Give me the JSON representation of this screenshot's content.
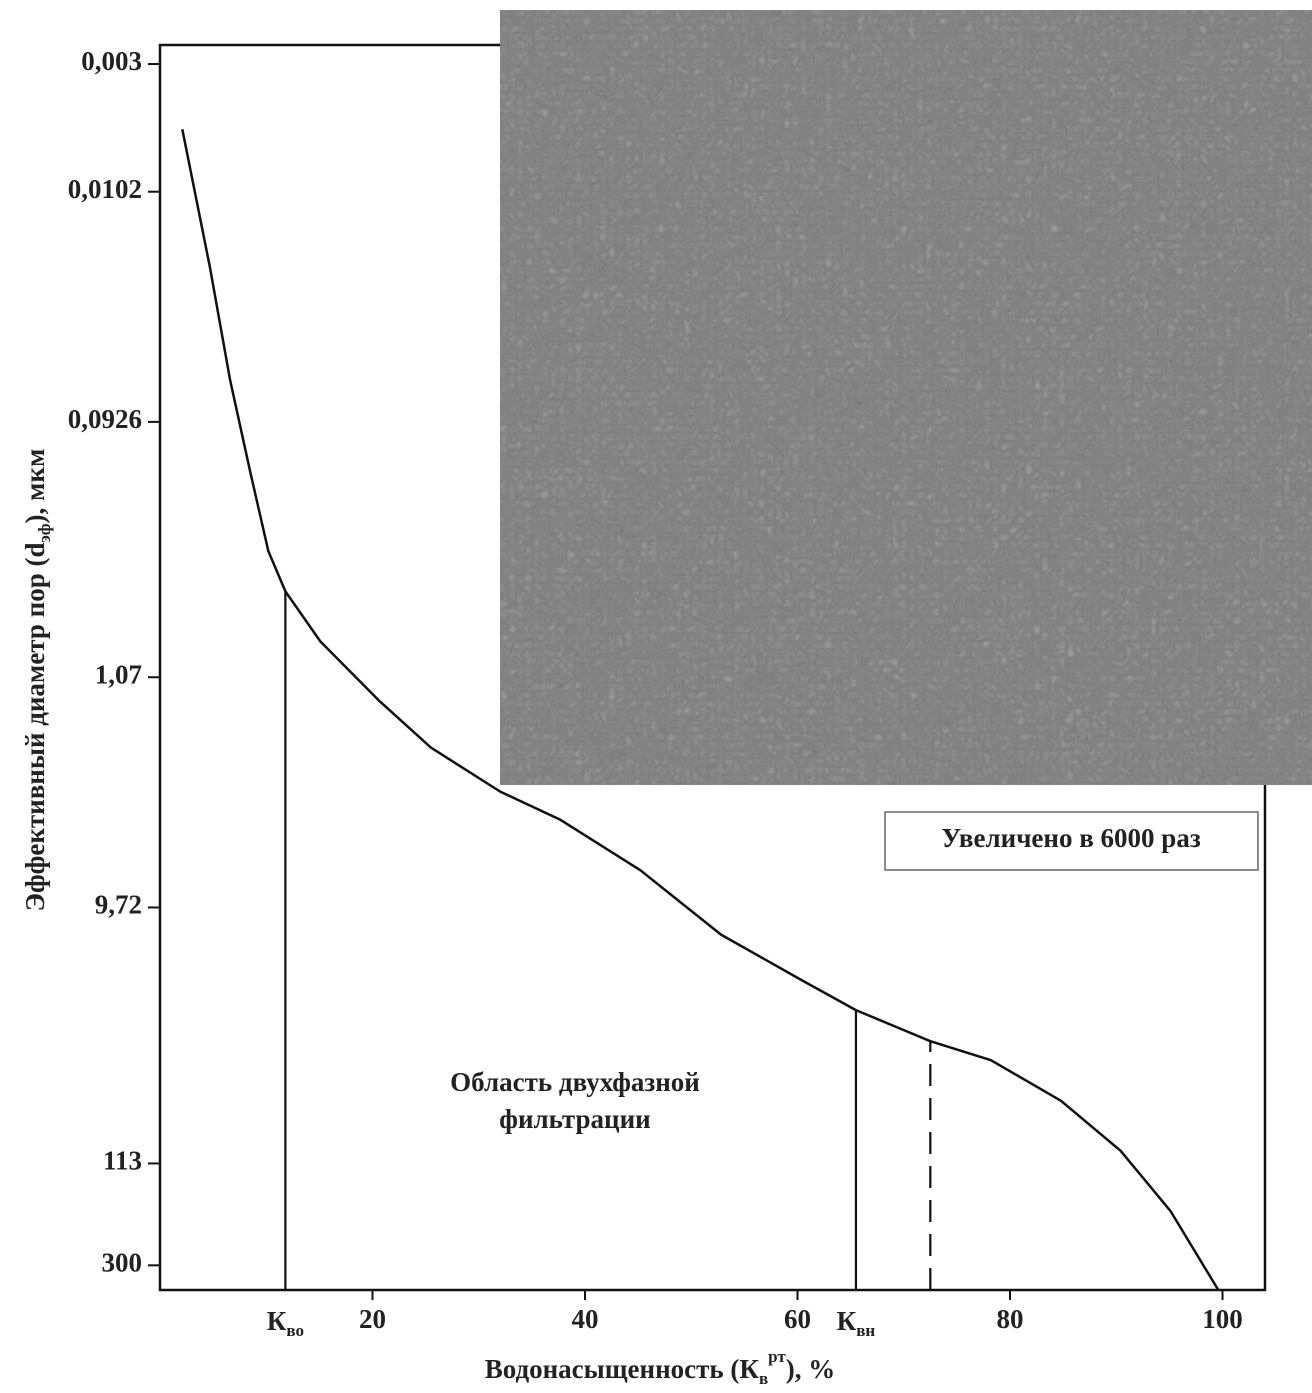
{
  "chart_data": {
    "type": "line",
    "xlabel": {
      "text": "Водонасыщенность (К",
      "sub": "в",
      "sup": "рт",
      "tail": "), %"
    },
    "ylabel": {
      "text": "Эффективный диаметр пор (d",
      "sub": "эф",
      "tail": "), мкм"
    },
    "x": [
      2.1,
      4.7,
      6.6,
      8.5,
      10.2,
      11.8,
      15.1,
      20.7,
      25.5,
      32,
      37.7,
      45.2,
      52.8,
      60.3,
      65.5,
      72.5,
      78.2,
      84.8,
      90.4,
      95.1,
      99.6
    ],
    "values": [
      0.0056,
      0.021,
      0.062,
      0.15,
      0.32,
      0.47,
      0.76,
      1.35,
      2.1,
      3.2,
      4.2,
      6.8,
      12.6,
      19.4,
      26,
      35,
      42,
      62,
      100,
      178,
      380
    ],
    "color": "#111111",
    "xlim": [
      0,
      104
    ],
    "xticks": [
      20,
      40,
      60,
      80,
      100
    ],
    "ylim": [
      0.0025,
      380
    ],
    "yscale": "log",
    "yinverted": true,
    "yticks": [
      {
        "value": 0.003,
        "label": "0,003"
      },
      {
        "value": 0.0102,
        "label": "0,0102"
      },
      {
        "value": 0.0926,
        "label": "0,0926"
      },
      {
        "value": 1.07,
        "label": "1,07"
      },
      {
        "value": 9.72,
        "label": "9,72"
      },
      113,
      300
    ],
    "vlines": [
      {
        "x": 11.8,
        "y": 0.47,
        "label": "К",
        "label_sub": "во",
        "dashed": false
      },
      {
        "x": 65.5,
        "y": 26,
        "label": "К",
        "label_sub": "вн",
        "dashed": false
      },
      {
        "x": 72.5,
        "y": 35,
        "dashed": true
      }
    ],
    "annotation": [
      "Область двухфазной",
      "фильтрации"
    ],
    "inset_caption": "Увеличено в 6000 раз"
  }
}
